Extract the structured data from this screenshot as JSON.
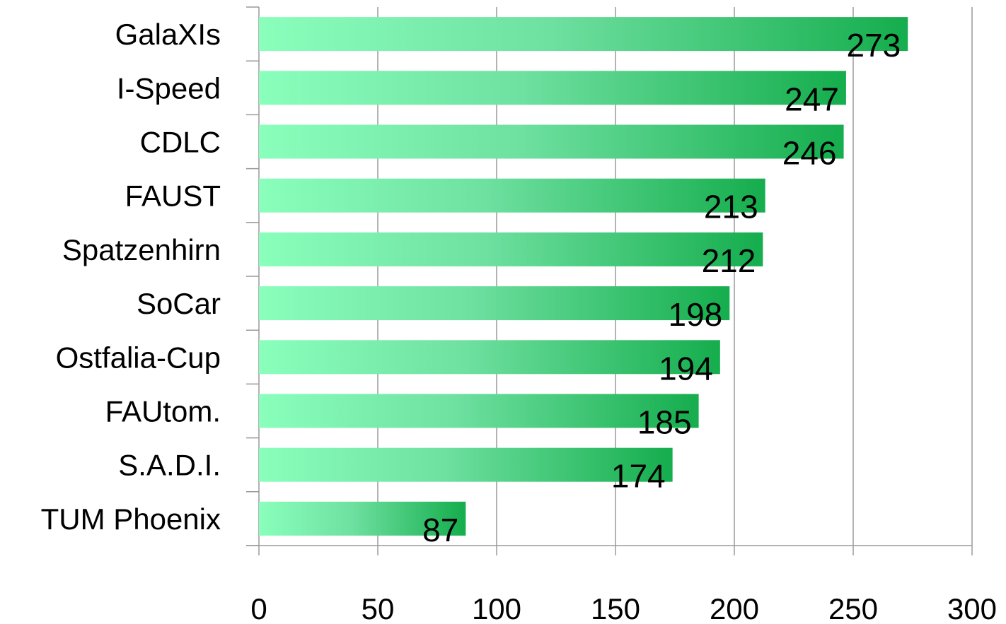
{
  "chart_data": {
    "type": "bar",
    "orientation": "horizontal",
    "categories": [
      "GalaXIs",
      "I-Speed",
      "CDLC",
      "FAUST",
      "Spatzenhirn",
      "SoCar",
      "Ostfalia-Cup",
      "FAUtom.",
      "S.A.D.I.",
      "TUM Phoenix"
    ],
    "values": [
      273,
      247,
      246,
      213,
      212,
      198,
      194,
      185,
      174,
      87
    ],
    "xlim": [
      0,
      300
    ],
    "xticks": [
      0,
      50,
      100,
      150,
      200,
      250,
      300
    ],
    "xtick_labels": [
      "0",
      "50",
      "100",
      "150",
      "200",
      "250",
      "300"
    ],
    "grid": "vertical",
    "data_labels": "inside-end",
    "legend": "none",
    "colors": {
      "bar_start": "#8affbc",
      "bar_mid": "#6ee0a0",
      "bar_end": "#15ad4d",
      "grid": "#9a9a9a"
    }
  }
}
